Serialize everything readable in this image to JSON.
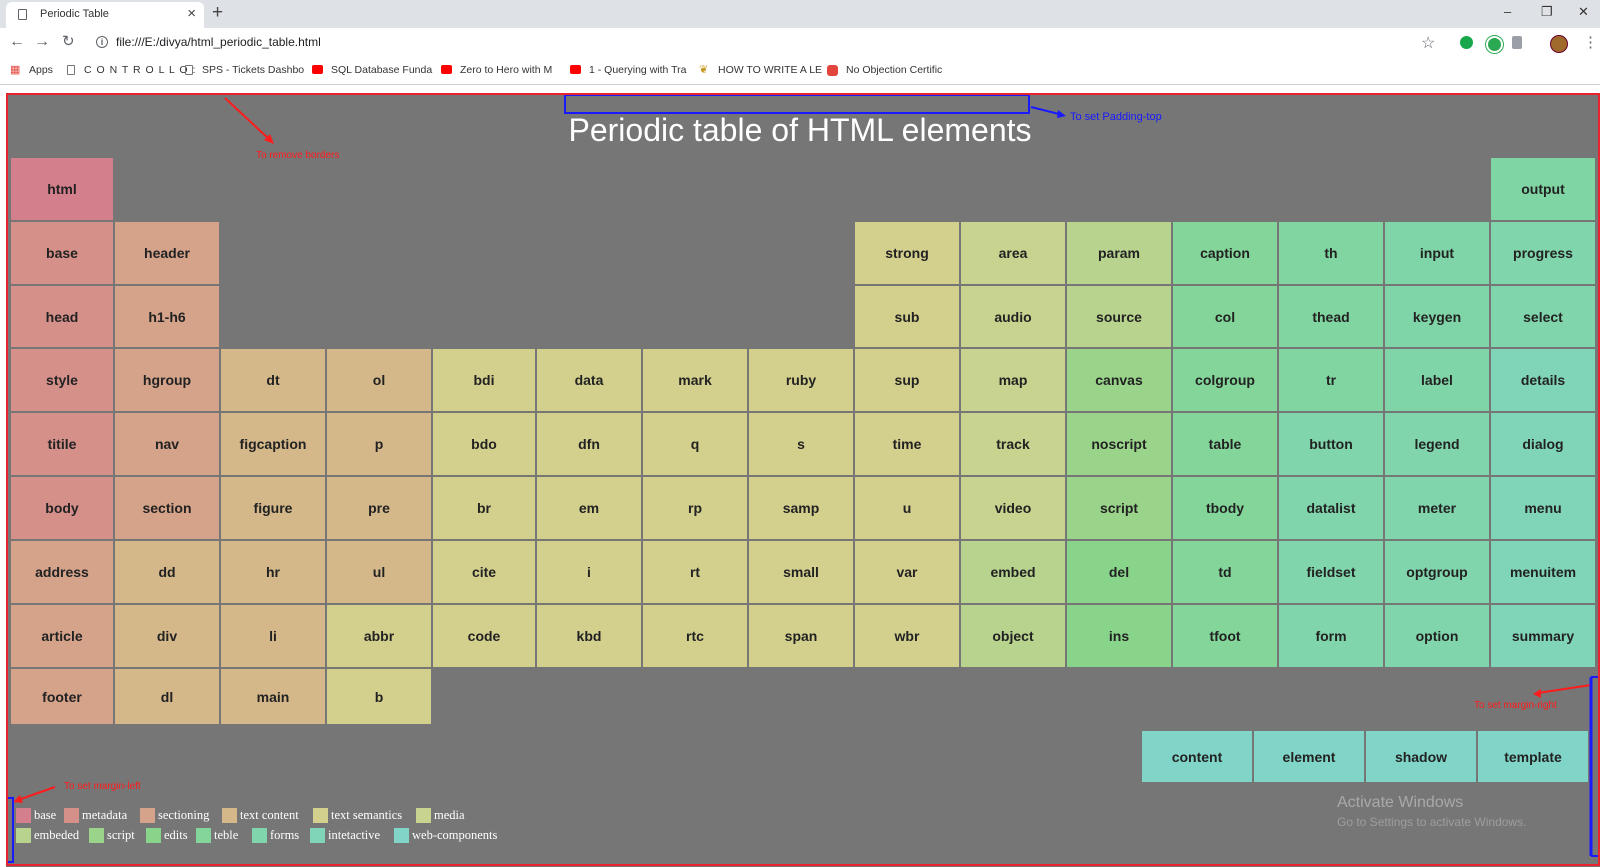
{
  "browser": {
    "tab_title": "Periodic Table",
    "new_tab": "+",
    "close": "×",
    "url": "file:///E:/divya/html_periodic_table.html",
    "window_controls": [
      "–",
      "❐",
      "✕"
    ],
    "bookmarks": [
      {
        "label": "Apps",
        "color": "#e2453c"
      },
      {
        "label": "C O N T R O L L O :",
        "color": "#777777"
      },
      {
        "label": "SPS - Tickets Dashbo",
        "color": "#777777"
      },
      {
        "label": "SQL Database Funda",
        "color": "#ff0000"
      },
      {
        "label": "Zero to Hero with M",
        "color": "#ff0000"
      },
      {
        "label": "1 - Querying with Tra",
        "color": "#ff0000"
      },
      {
        "label": "HOW TO WRITE A LE",
        "color": "#c59a24"
      },
      {
        "label": "No Objection Certific",
        "color": "#e2453c"
      }
    ]
  },
  "page": {
    "title": "Periodic table of HTML elements",
    "elements": [
      {
        "label": "html",
        "color": "#d47f8c"
      },
      {
        "label": "output",
        "color": "#80d5a4"
      },
      {
        "label": "base",
        "color": "#d6908a"
      },
      {
        "label": "header",
        "color": "#d4a38a"
      },
      {
        "label": "strong",
        "color": "#d3d08e"
      },
      {
        "label": "area",
        "color": "#c7d38e"
      },
      {
        "label": "param",
        "color": "#b7d38e"
      },
      {
        "label": "caption",
        "color": "#83d59a"
      },
      {
        "label": "th",
        "color": "#80d5a0"
      },
      {
        "label": "input",
        "color": "#80d5a8"
      },
      {
        "label": "progress",
        "color": "#80d5ac"
      },
      {
        "label": "head",
        "color": "#d6908a"
      },
      {
        "label": "h1-h6",
        "color": "#d4a38a"
      },
      {
        "label": "sub",
        "color": "#d3d08e"
      },
      {
        "label": "audio",
        "color": "#c7d38e"
      },
      {
        "label": "source",
        "color": "#b7d38e"
      },
      {
        "label": "col",
        "color": "#83d59a"
      },
      {
        "label": "thead",
        "color": "#80d5a0"
      },
      {
        "label": "keygen",
        "color": "#80d5a8"
      },
      {
        "label": "select",
        "color": "#80d5ac"
      },
      {
        "label": "style",
        "color": "#d6908a"
      },
      {
        "label": "hgroup",
        "color": "#d4a38a"
      },
      {
        "label": "dt",
        "color": "#d4b88a"
      },
      {
        "label": "ol",
        "color": "#d4b88a"
      },
      {
        "label": "bdi",
        "color": "#d3d08e"
      },
      {
        "label": "data",
        "color": "#d3d08e"
      },
      {
        "label": "mark",
        "color": "#d3d08e"
      },
      {
        "label": "ruby",
        "color": "#d3d08e"
      },
      {
        "label": "sup",
        "color": "#d3d08e"
      },
      {
        "label": "map",
        "color": "#c7d38e"
      },
      {
        "label": "canvas",
        "color": "#9ad48a"
      },
      {
        "label": "colgroup",
        "color": "#83d59a"
      },
      {
        "label": "tr",
        "color": "#80d5a0"
      },
      {
        "label": "label",
        "color": "#80d5a8"
      },
      {
        "label": "details",
        "color": "#80d5b8"
      },
      {
        "label": "titile",
        "color": "#d6908a"
      },
      {
        "label": "nav",
        "color": "#d4a38a"
      },
      {
        "label": "figcaption",
        "color": "#d4b88a"
      },
      {
        "label": "p",
        "color": "#d4b88a"
      },
      {
        "label": "bdo",
        "color": "#d3d08e"
      },
      {
        "label": "dfn",
        "color": "#d3d08e"
      },
      {
        "label": "q",
        "color": "#d3d08e"
      },
      {
        "label": "s",
        "color": "#d3d08e"
      },
      {
        "label": "time",
        "color": "#d3d08e"
      },
      {
        "label": "track",
        "color": "#c7d38e"
      },
      {
        "label": "noscript",
        "color": "#9ad48a"
      },
      {
        "label": "table",
        "color": "#83d59a"
      },
      {
        "label": "button",
        "color": "#80d5ac"
      },
      {
        "label": "legend",
        "color": "#80d5ac"
      },
      {
        "label": "dialog",
        "color": "#80d5b8"
      },
      {
        "label": "body",
        "color": "#d6908a"
      },
      {
        "label": "section",
        "color": "#d4a38a"
      },
      {
        "label": "figure",
        "color": "#d4b88a"
      },
      {
        "label": "pre",
        "color": "#d4b88a"
      },
      {
        "label": "br",
        "color": "#d3d08e"
      },
      {
        "label": "em",
        "color": "#d3d08e"
      },
      {
        "label": "rp",
        "color": "#d3d08e"
      },
      {
        "label": "samp",
        "color": "#d3d08e"
      },
      {
        "label": "u",
        "color": "#d3d08e"
      },
      {
        "label": "video",
        "color": "#c7d38e"
      },
      {
        "label": "script",
        "color": "#9ad48a"
      },
      {
        "label": "tbody",
        "color": "#83d59a"
      },
      {
        "label": "datalist",
        "color": "#80d5ac"
      },
      {
        "label": "meter",
        "color": "#80d5ac"
      },
      {
        "label": "menu",
        "color": "#80d5b8"
      },
      {
        "label": "address",
        "color": "#d4a38a"
      },
      {
        "label": "dd",
        "color": "#d4b88a"
      },
      {
        "label": "hr",
        "color": "#d4b88a"
      },
      {
        "label": "ul",
        "color": "#d4b88a"
      },
      {
        "label": "cite",
        "color": "#d3d08e"
      },
      {
        "label": "i",
        "color": "#d3d08e"
      },
      {
        "label": "rt",
        "color": "#d3d08e"
      },
      {
        "label": "small",
        "color": "#d3d08e"
      },
      {
        "label": "var",
        "color": "#d3d08e"
      },
      {
        "label": "embed",
        "color": "#b7d38e"
      },
      {
        "label": "del",
        "color": "#88d48a"
      },
      {
        "label": "td",
        "color": "#83d59a"
      },
      {
        "label": "fieldset",
        "color": "#80d5ac"
      },
      {
        "label": "optgroup",
        "color": "#80d5ac"
      },
      {
        "label": "menuitem",
        "color": "#80d5b8"
      },
      {
        "label": "article",
        "color": "#d4a38a"
      },
      {
        "label": "div",
        "color": "#d4b88a"
      },
      {
        "label": "li",
        "color": "#d4b88a"
      },
      {
        "label": "abbr",
        "color": "#d3d08e"
      },
      {
        "label": "code",
        "color": "#d3d08e"
      },
      {
        "label": "kbd",
        "color": "#d3d08e"
      },
      {
        "label": "rtc",
        "color": "#d3d08e"
      },
      {
        "label": "span",
        "color": "#d3d08e"
      },
      {
        "label": "wbr",
        "color": "#d3d08e"
      },
      {
        "label": "object",
        "color": "#b7d38e"
      },
      {
        "label": "ins",
        "color": "#88d48a"
      },
      {
        "label": "tfoot",
        "color": "#83d59a"
      },
      {
        "label": "form",
        "color": "#80d5ac"
      },
      {
        "label": "option",
        "color": "#80d5ac"
      },
      {
        "label": "summary",
        "color": "#80d5b8"
      },
      {
        "label": "footer",
        "color": "#d4a38a"
      },
      {
        "label": "dl",
        "color": "#d4b88a"
      },
      {
        "label": "main",
        "color": "#d4b88a"
      },
      {
        "label": "b",
        "color": "#d3d08e"
      },
      {
        "label": "content",
        "color": "#80d5c8"
      },
      {
        "label": "element",
        "color": "#80d5c8"
      },
      {
        "label": "shadow",
        "color": "#80d5c8"
      },
      {
        "label": "template",
        "color": "#80d5c8"
      }
    ],
    "legend": [
      {
        "label": "base",
        "color": "#d47f8c"
      },
      {
        "label": "metadata",
        "color": "#d6908a"
      },
      {
        "label": "sectioning",
        "color": "#d4a38a"
      },
      {
        "label": "text content",
        "color": "#d4b88a"
      },
      {
        "label": "text semantics",
        "color": "#d3d08e"
      },
      {
        "label": "media",
        "color": "#c7d38e"
      },
      {
        "label": "embeded",
        "color": "#b7d38e"
      },
      {
        "label": "script",
        "color": "#9ad48a"
      },
      {
        "label": "edits",
        "color": "#88d48a"
      },
      {
        "label": "teble",
        "color": "#83d59a"
      },
      {
        "label": "forms",
        "color": "#80d5ac"
      },
      {
        "label": "intetactive",
        "color": "#80d5b8"
      },
      {
        "label": "web-components",
        "color": "#80d5c8"
      }
    ],
    "watermark": {
      "line1": "Activate Windows",
      "line2": "Go to Settings to activate Windows."
    }
  },
  "annotations": {
    "remove_borders": "To remove borders",
    "padding_top": "To set Padding-top",
    "margin_left": "To set margin-left",
    "margin_right": "To set margin-right"
  }
}
